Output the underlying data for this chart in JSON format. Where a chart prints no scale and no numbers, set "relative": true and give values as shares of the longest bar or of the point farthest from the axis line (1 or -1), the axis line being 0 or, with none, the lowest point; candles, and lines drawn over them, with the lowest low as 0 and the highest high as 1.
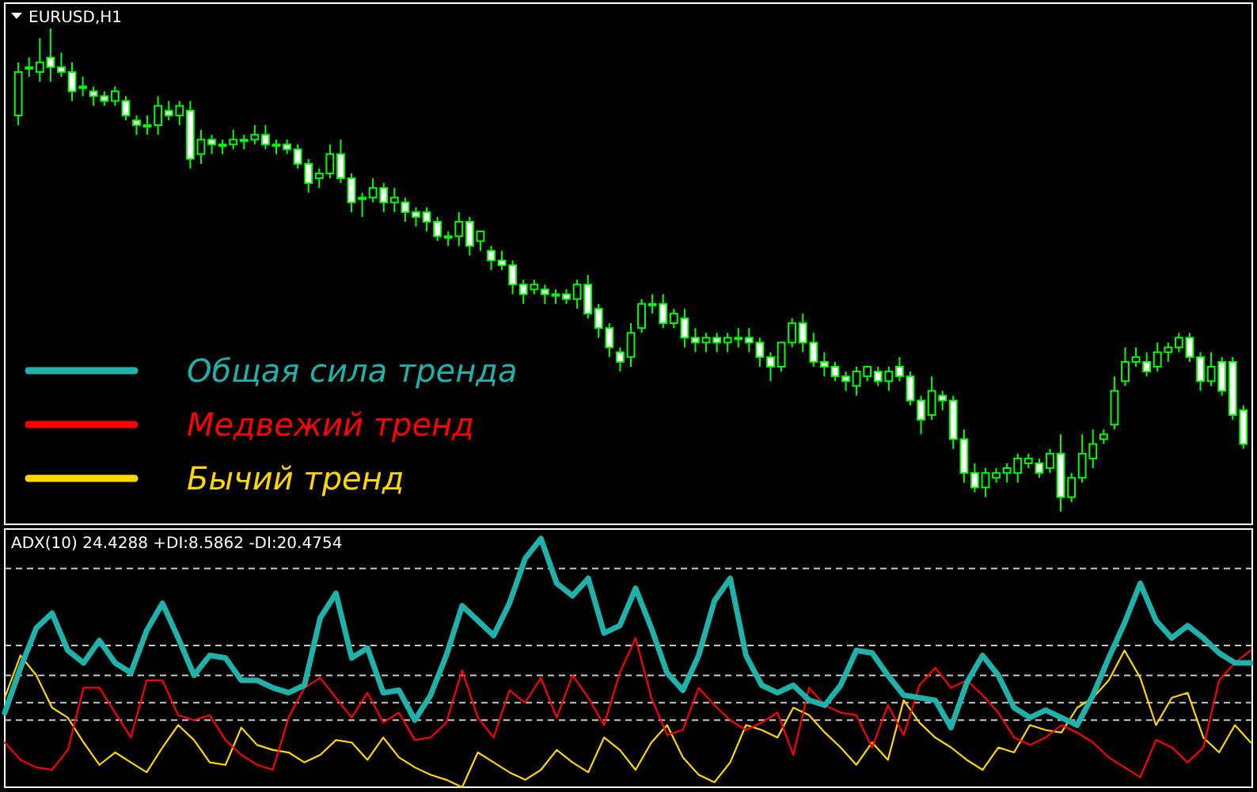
{
  "chart_data": [
    {
      "type": "candlestick",
      "title": "EURUSD,H1",
      "relative": true,
      "color": "#00ff00",
      "categories": [
        null,
        null,
        null,
        null,
        null,
        null,
        null,
        null,
        null,
        null,
        null,
        null,
        null,
        null,
        null,
        null,
        null,
        null,
        null,
        null,
        null,
        null,
        null,
        null,
        null,
        null,
        null,
        null,
        null,
        null,
        null,
        null,
        null,
        null,
        null,
        null,
        null,
        null,
        null,
        null,
        null,
        null,
        null,
        null,
        null,
        null,
        null,
        null,
        null,
        null,
        null,
        null,
        null,
        null,
        null,
        null,
        null,
        null,
        null,
        null,
        null,
        null,
        null,
        null,
        null,
        null,
        null,
        null,
        null,
        null,
        null,
        null,
        null,
        null,
        null,
        null,
        null,
        null,
        null,
        null,
        null,
        null,
        null,
        null,
        null,
        null,
        null,
        null,
        null,
        null,
        null,
        null,
        null,
        null,
        null,
        null,
        null,
        null,
        null,
        null,
        null,
        null,
        null,
        null,
        null,
        null,
        null,
        null,
        null,
        null,
        null,
        null,
        null,
        null,
        null
      ],
      "ohlc": [
        [
          0.82,
          0.93,
          0.8,
          0.91
        ],
        [
          0.92,
          0.94,
          0.9,
          0.92
        ],
        [
          0.91,
          0.98,
          0.89,
          0.93
        ],
        [
          0.94,
          1.0,
          0.89,
          0.92
        ],
        [
          0.92,
          0.95,
          0.9,
          0.91
        ],
        [
          0.91,
          0.93,
          0.85,
          0.87
        ],
        [
          0.88,
          0.9,
          0.86,
          0.88
        ],
        [
          0.87,
          0.88,
          0.84,
          0.86
        ],
        [
          0.86,
          0.87,
          0.84,
          0.85
        ],
        [
          0.85,
          0.88,
          0.84,
          0.87
        ],
        [
          0.85,
          0.86,
          0.81,
          0.82
        ],
        [
          0.81,
          0.82,
          0.78,
          0.8
        ],
        [
          0.8,
          0.82,
          0.78,
          0.8
        ],
        [
          0.8,
          0.86,
          0.78,
          0.84
        ],
        [
          0.83,
          0.85,
          0.81,
          0.82
        ],
        [
          0.82,
          0.85,
          0.8,
          0.84
        ],
        [
          0.83,
          0.85,
          0.71,
          0.73
        ],
        [
          0.74,
          0.79,
          0.72,
          0.77
        ],
        [
          0.77,
          0.78,
          0.74,
          0.76
        ],
        [
          0.76,
          0.77,
          0.74,
          0.76
        ],
        [
          0.76,
          0.79,
          0.75,
          0.77
        ],
        [
          0.77,
          0.78,
          0.75,
          0.77
        ],
        [
          0.77,
          0.8,
          0.76,
          0.78
        ],
        [
          0.78,
          0.8,
          0.75,
          0.76
        ],
        [
          0.76,
          0.77,
          0.74,
          0.76
        ],
        [
          0.76,
          0.77,
          0.74,
          0.75
        ],
        [
          0.75,
          0.76,
          0.71,
          0.72
        ],
        [
          0.72,
          0.73,
          0.66,
          0.68
        ],
        [
          0.69,
          0.71,
          0.67,
          0.7
        ],
        [
          0.7,
          0.76,
          0.69,
          0.74
        ],
        [
          0.74,
          0.77,
          0.68,
          0.69
        ],
        [
          0.69,
          0.7,
          0.62,
          0.64
        ],
        [
          0.65,
          0.66,
          0.61,
          0.65
        ],
        [
          0.65,
          0.69,
          0.64,
          0.67
        ],
        [
          0.67,
          0.68,
          0.62,
          0.64
        ],
        [
          0.64,
          0.67,
          0.62,
          0.65
        ],
        [
          0.64,
          0.65,
          0.6,
          0.62
        ],
        [
          0.62,
          0.63,
          0.59,
          0.61
        ],
        [
          0.62,
          0.63,
          0.58,
          0.6
        ],
        [
          0.6,
          0.61,
          0.56,
          0.57
        ],
        [
          0.57,
          0.58,
          0.55,
          0.57
        ],
        [
          0.57,
          0.62,
          0.55,
          0.6
        ],
        [
          0.6,
          0.61,
          0.53,
          0.55
        ],
        [
          0.56,
          0.58,
          0.54,
          0.58
        ],
        [
          0.54,
          0.55,
          0.5,
          0.52
        ],
        [
          0.52,
          0.54,
          0.5,
          0.51
        ],
        [
          0.51,
          0.52,
          0.45,
          0.47
        ],
        [
          0.47,
          0.48,
          0.43,
          0.45
        ],
        [
          0.46,
          0.48,
          0.45,
          0.47
        ],
        [
          0.46,
          0.47,
          0.43,
          0.45
        ],
        [
          0.45,
          0.46,
          0.43,
          0.45
        ],
        [
          0.45,
          0.46,
          0.43,
          0.44
        ],
        [
          0.44,
          0.48,
          0.42,
          0.47
        ],
        [
          0.47,
          0.49,
          0.4,
          0.41
        ],
        [
          0.42,
          0.43,
          0.36,
          0.38
        ],
        [
          0.38,
          0.39,
          0.32,
          0.34
        ],
        [
          0.33,
          0.34,
          0.29,
          0.31
        ],
        [
          0.32,
          0.39,
          0.3,
          0.37
        ],
        [
          0.38,
          0.44,
          0.37,
          0.43
        ],
        [
          0.43,
          0.45,
          0.41,
          0.43
        ],
        [
          0.43,
          0.45,
          0.38,
          0.39
        ],
        [
          0.39,
          0.42,
          0.38,
          0.41
        ],
        [
          0.4,
          0.42,
          0.34,
          0.36
        ],
        [
          0.36,
          0.38,
          0.33,
          0.35
        ],
        [
          0.35,
          0.37,
          0.33,
          0.36
        ],
        [
          0.36,
          0.37,
          0.33,
          0.35
        ],
        [
          0.35,
          0.37,
          0.33,
          0.36
        ],
        [
          0.36,
          0.38,
          0.34,
          0.36
        ],
        [
          0.36,
          0.38,
          0.33,
          0.35
        ],
        [
          0.35,
          0.36,
          0.3,
          0.32
        ],
        [
          0.32,
          0.33,
          0.27,
          0.3
        ],
        [
          0.3,
          0.35,
          0.29,
          0.35
        ],
        [
          0.35,
          0.4,
          0.34,
          0.39
        ],
        [
          0.39,
          0.41,
          0.33,
          0.35
        ],
        [
          0.35,
          0.37,
          0.3,
          0.31
        ],
        [
          0.31,
          0.33,
          0.28,
          0.3
        ],
        [
          0.3,
          0.31,
          0.27,
          0.28
        ],
        [
          0.28,
          0.29,
          0.25,
          0.27
        ],
        [
          0.26,
          0.3,
          0.24,
          0.29
        ],
        [
          0.28,
          0.3,
          0.27,
          0.3
        ],
        [
          0.29,
          0.3,
          0.26,
          0.27
        ],
        [
          0.27,
          0.3,
          0.25,
          0.29
        ],
        [
          0.3,
          0.32,
          0.27,
          0.28
        ],
        [
          0.28,
          0.29,
          0.22,
          0.23
        ],
        [
          0.23,
          0.24,
          0.16,
          0.19
        ],
        [
          0.2,
          0.28,
          0.19,
          0.25
        ],
        [
          0.24,
          0.25,
          0.21,
          0.23
        ],
        [
          0.23,
          0.24,
          0.13,
          0.15
        ],
        [
          0.15,
          0.17,
          0.06,
          0.08
        ],
        [
          0.08,
          0.1,
          0.04,
          0.05
        ],
        [
          0.05,
          0.09,
          0.03,
          0.08
        ],
        [
          0.07,
          0.09,
          0.06,
          0.08
        ],
        [
          0.08,
          0.1,
          0.06,
          0.09
        ],
        [
          0.08,
          0.12,
          0.06,
          0.11
        ],
        [
          0.1,
          0.12,
          0.09,
          0.11
        ],
        [
          0.1,
          0.11,
          0.07,
          0.08
        ],
        [
          0.09,
          0.13,
          0.08,
          0.12
        ],
        [
          0.12,
          0.16,
          0.0,
          0.03
        ],
        [
          0.03,
          0.08,
          0.02,
          0.07
        ],
        [
          0.07,
          0.16,
          0.06,
          0.12
        ],
        [
          0.11,
          0.17,
          0.09,
          0.14
        ],
        [
          0.15,
          0.17,
          0.14,
          0.16
        ],
        [
          0.18,
          0.28,
          0.17,
          0.25
        ],
        [
          0.27,
          0.34,
          0.26,
          0.31
        ],
        [
          0.31,
          0.34,
          0.3,
          0.32
        ],
        [
          0.31,
          0.33,
          0.28,
          0.29
        ],
        [
          0.3,
          0.35,
          0.29,
          0.33
        ],
        [
          0.33,
          0.35,
          0.31,
          0.34
        ],
        [
          0.34,
          0.37,
          0.33,
          0.36
        ],
        [
          0.36,
          0.37,
          0.31,
          0.32
        ],
        [
          0.32,
          0.33,
          0.25,
          0.27
        ],
        [
          0.27,
          0.33,
          0.26,
          0.3
        ],
        [
          0.31,
          0.32,
          0.24,
          0.25
        ],
        [
          0.31,
          0.32,
          0.19,
          0.2
        ],
        [
          0.21,
          0.22,
          0.13,
          0.14
        ]
      ]
    },
    {
      "type": "line",
      "title": "ADX(10) 24.4288 +DI:8.5862 -DI:20.4754",
      "relative": true,
      "legend": "top left",
      "categories": [
        null,
        null,
        null,
        null,
        null,
        null,
        null,
        null,
        null,
        null,
        null,
        null,
        null,
        null,
        null,
        null,
        null,
        null,
        null,
        null,
        null,
        null,
        null,
        null,
        null,
        null,
        null,
        null,
        null,
        null,
        null,
        null,
        null,
        null,
        null,
        null,
        null,
        null,
        null,
        null,
        null,
        null,
        null,
        null,
        null,
        null,
        null,
        null,
        null,
        null,
        null,
        null,
        null,
        null,
        null,
        null,
        null,
        null,
        null,
        null,
        null,
        null,
        null,
        null,
        null,
        null,
        null,
        null,
        null,
        null,
        null,
        null,
        null,
        null,
        null,
        null,
        null,
        null,
        null,
        null
      ],
      "ref_lines": [
        {
          "axis": "y",
          "value": 0.88,
          "color": "#c8c8c8",
          "line_style": "dashed"
        },
        {
          "axis": "y",
          "value": 0.57,
          "color": "#c8c8c8",
          "line_style": "dashed"
        },
        {
          "axis": "y",
          "value": 0.45,
          "color": "#c8c8c8",
          "line_style": "dashed"
        },
        {
          "axis": "y",
          "value": 0.34,
          "color": "#c8c8c8",
          "line_style": "dashed"
        },
        {
          "axis": "y",
          "value": 0.27,
          "color": "#c8c8c8",
          "line_style": "dashed"
        }
      ],
      "series": [
        {
          "name": "Общая сила тренда",
          "color": "#20b2aa",
          "values": [
            0.3,
            0.48,
            0.64,
            0.7,
            0.55,
            0.5,
            0.59,
            0.5,
            0.46,
            0.63,
            0.74,
            0.6,
            0.45,
            0.53,
            0.52,
            0.43,
            0.43,
            0.4,
            0.38,
            0.41,
            0.68,
            0.78,
            0.52,
            0.56,
            0.38,
            0.39,
            0.27,
            0.37,
            0.53,
            0.73,
            0.67,
            0.61,
            0.74,
            0.92,
            1.0,
            0.82,
            0.77,
            0.84,
            0.62,
            0.65,
            0.8,
            0.64,
            0.46,
            0.39,
            0.53,
            0.75,
            0.84,
            0.53,
            0.41,
            0.38,
            0.41,
            0.35,
            0.33,
            0.41,
            0.55,
            0.54,
            0.45,
            0.37,
            0.36,
            0.35,
            0.24,
            0.42,
            0.53,
            0.45,
            0.32,
            0.28,
            0.31,
            0.28,
            0.25,
            0.37,
            0.52,
            0.66,
            0.82,
            0.67,
            0.6,
            0.65,
            0.6,
            0.54,
            0.5,
            0.5
          ]
        },
        {
          "name": "Медвежий тренд",
          "color": "#ff0000",
          "values": [
            0.18,
            0.11,
            0.08,
            0.07,
            0.15,
            0.4,
            0.4,
            0.3,
            0.2,
            0.43,
            0.43,
            0.29,
            0.27,
            0.29,
            0.19,
            0.13,
            0.09,
            0.07,
            0.28,
            0.4,
            0.44,
            0.36,
            0.28,
            0.38,
            0.26,
            0.3,
            0.19,
            0.2,
            0.26,
            0.47,
            0.28,
            0.2,
            0.39,
            0.34,
            0.44,
            0.28,
            0.45,
            0.36,
            0.25,
            0.46,
            0.6,
            0.36,
            0.21,
            0.23,
            0.4,
            0.33,
            0.27,
            0.23,
            0.26,
            0.3,
            0.13,
            0.4,
            0.33,
            0.3,
            0.29,
            0.16,
            0.33,
            0.21,
            0.41,
            0.48,
            0.4,
            0.43,
            0.37,
            0.3,
            0.2,
            0.17,
            0.2,
            0.25,
            0.22,
            0.18,
            0.12,
            0.08,
            0.04,
            0.19,
            0.16,
            0.1,
            0.16,
            0.43,
            0.5,
            0.55
          ]
        },
        {
          "name": "Бычий тренд",
          "color": "#ffd700",
          "values": [
            0.36,
            0.53,
            0.45,
            0.32,
            0.28,
            0.18,
            0.09,
            0.14,
            0.1,
            0.06,
            0.16,
            0.25,
            0.19,
            0.1,
            0.09,
            0.24,
            0.17,
            0.15,
            0.14,
            0.1,
            0.13,
            0.19,
            0.18,
            0.11,
            0.2,
            0.12,
            0.08,
            0.05,
            0.03,
            0.0,
            0.14,
            0.1,
            0.06,
            0.03,
            0.07,
            0.15,
            0.1,
            0.06,
            0.2,
            0.15,
            0.07,
            0.18,
            0.25,
            0.12,
            0.05,
            0.02,
            0.1,
            0.25,
            0.23,
            0.2,
            0.32,
            0.29,
            0.22,
            0.16,
            0.09,
            0.18,
            0.11,
            0.35,
            0.26,
            0.2,
            0.16,
            0.11,
            0.07,
            0.16,
            0.14,
            0.25,
            0.23,
            0.22,
            0.32,
            0.36,
            0.43,
            0.55,
            0.44,
            0.25,
            0.36,
            0.38,
            0.2,
            0.14,
            0.25,
            0.18
          ]
        }
      ]
    }
  ]
}
